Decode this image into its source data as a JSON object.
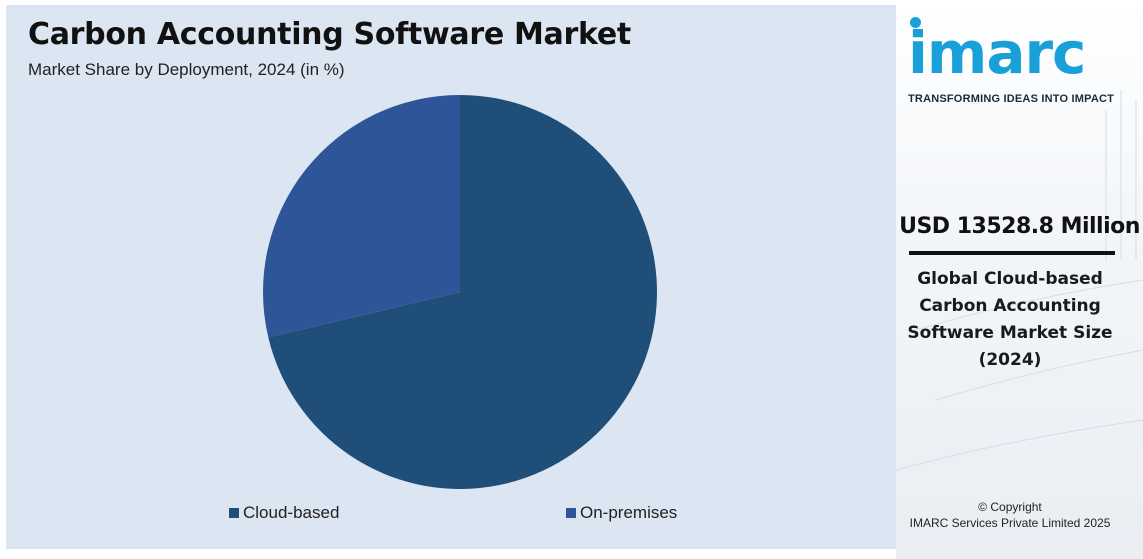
{
  "chart_data": {
    "type": "pie",
    "title": "Carbon Accounting Software Market",
    "subtitle": "Market Share by Deployment, 2024 (in %)",
    "categories": [
      "Cloud-based",
      "On-premises"
    ],
    "values": [
      71.3,
      28.7
    ],
    "colors": [
      "#1f4e79",
      "#2e5597"
    ],
    "legend_position": "bottom"
  },
  "side_panel": {
    "logo_text": "imarc",
    "logo_tagline": "TRANSFORMING IDEAS INTO IMPACT",
    "market_size": "USD 13528.8 Million",
    "market_desc": "Global Cloud-based Carbon Accounting Software Market Size (2024)",
    "copyright_line1": "© Copyright",
    "copyright_line2": "IMARC Services Private Limited 2025",
    "brand_color": "#1aa0d8"
  }
}
